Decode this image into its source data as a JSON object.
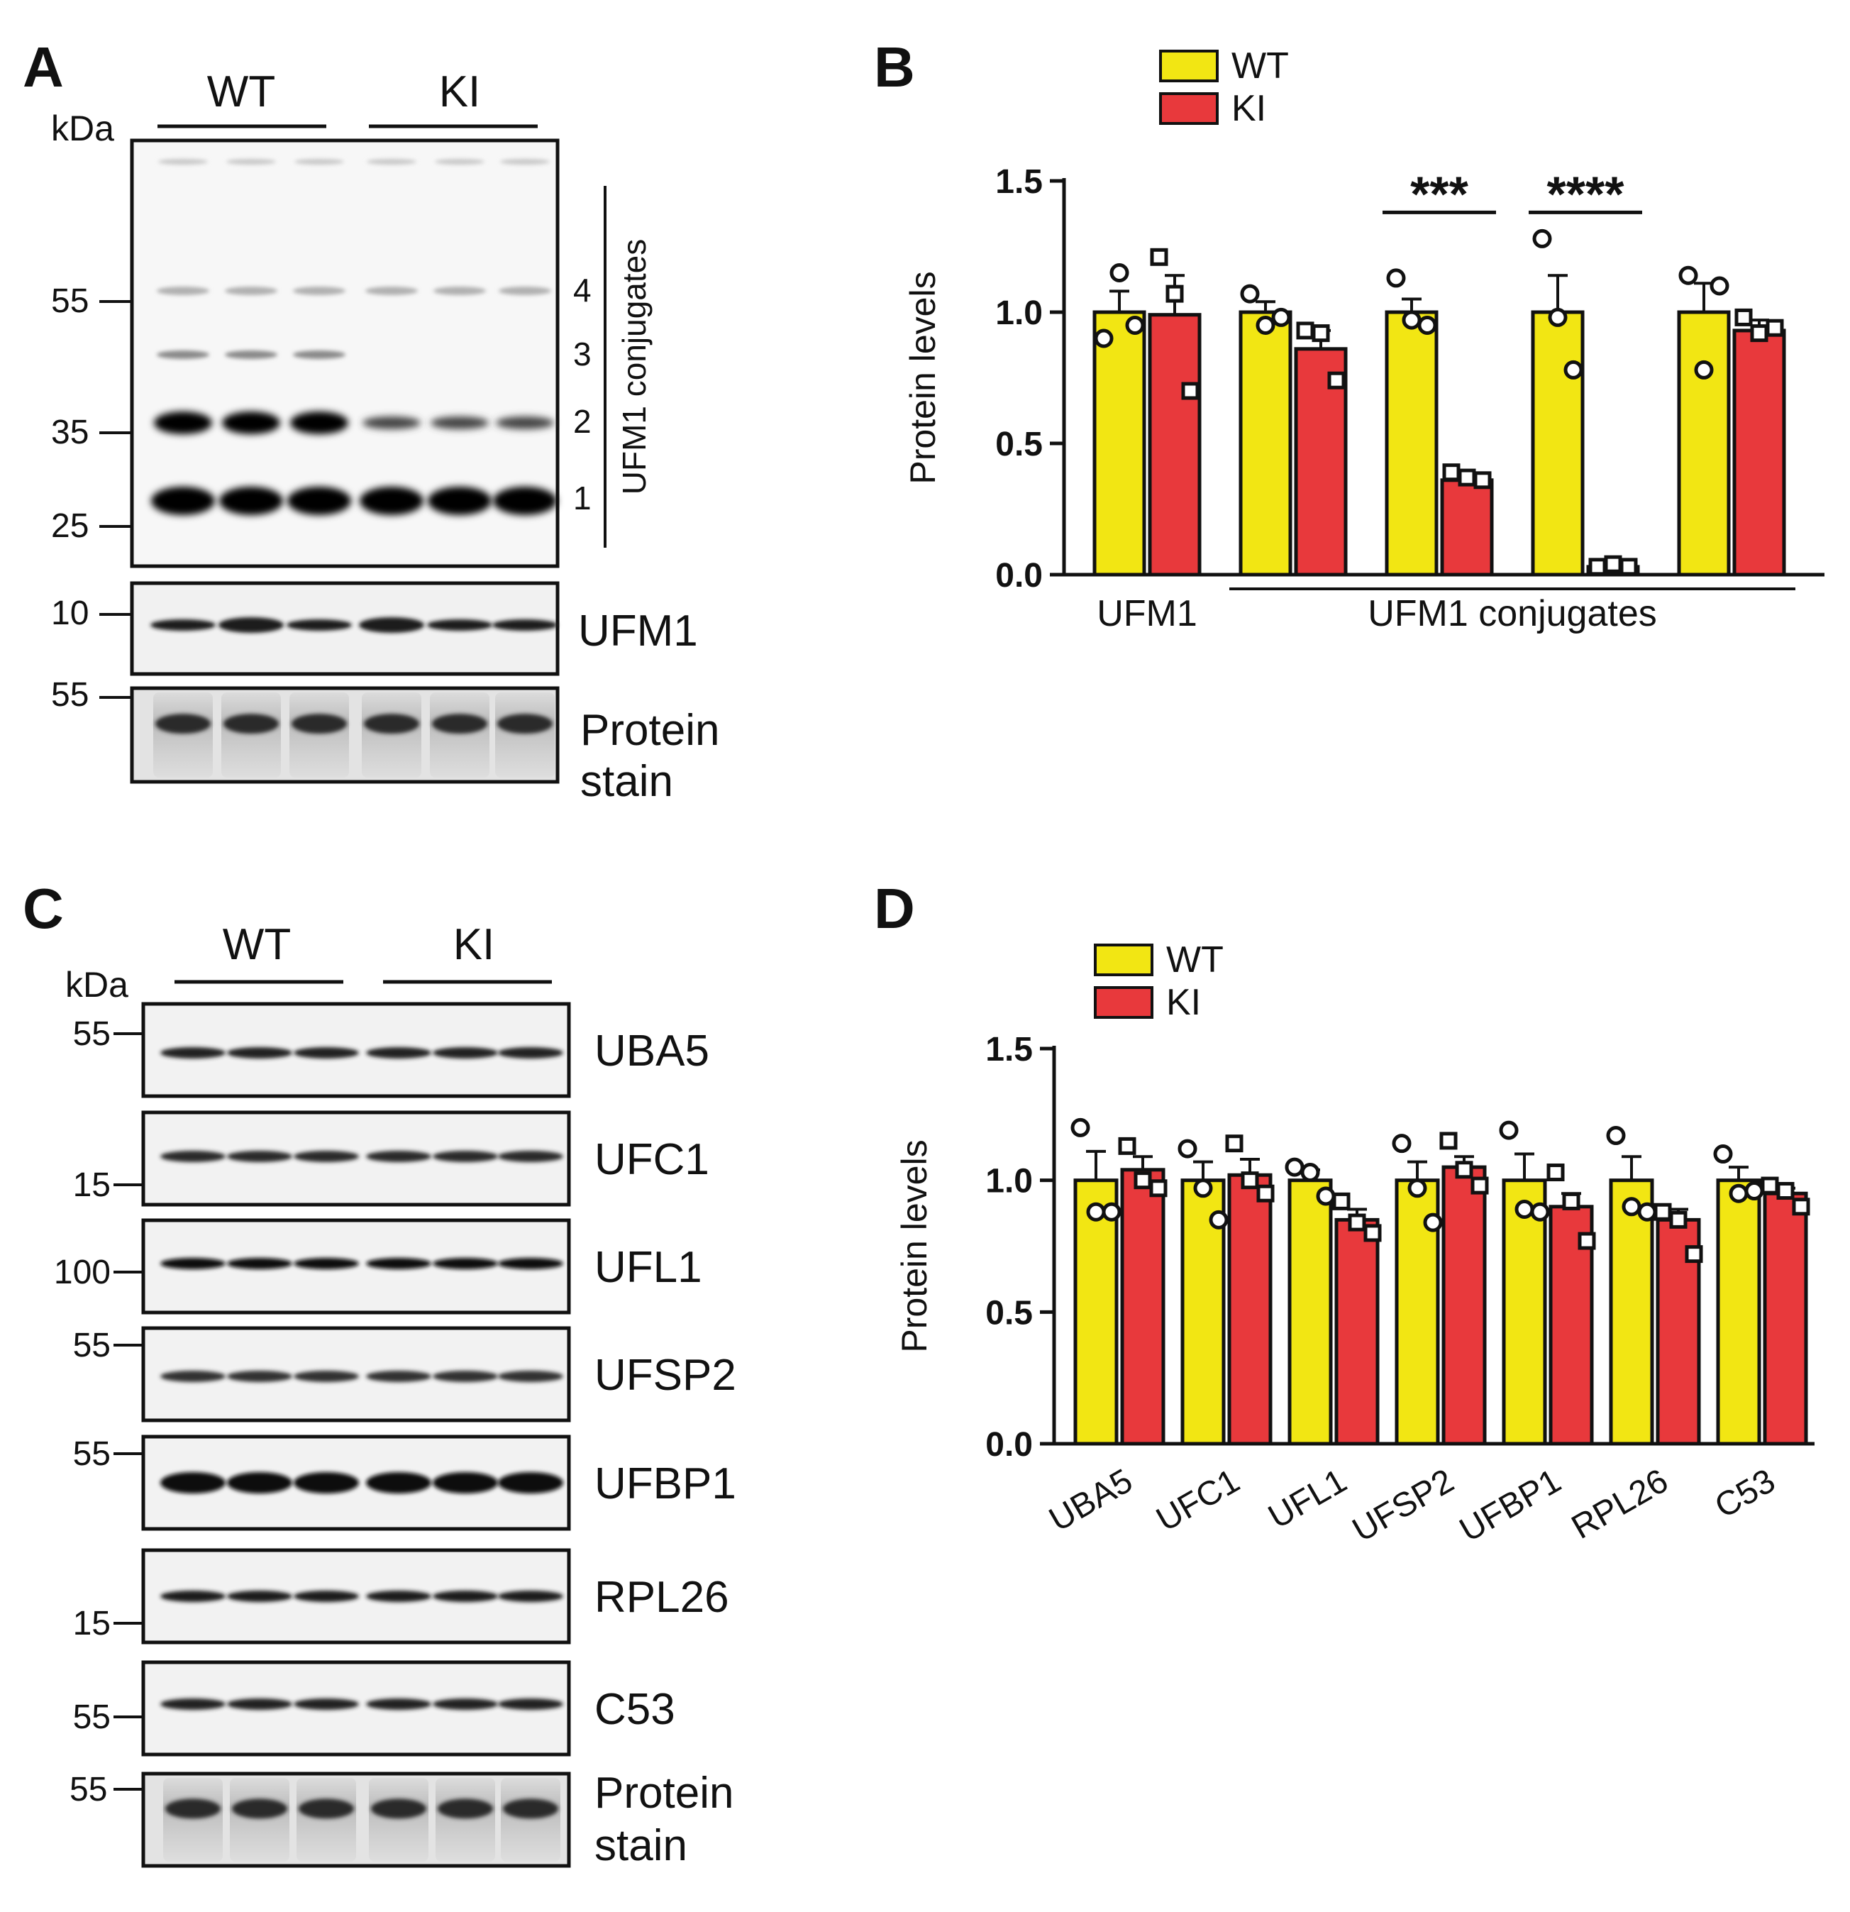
{
  "panels": {
    "A": {
      "letter": "A",
      "group_labels": [
        "WT",
        "KI"
      ],
      "kda_label": "kDa",
      "conj_markers": [
        "55",
        "35",
        "25"
      ],
      "conj_band_numbers": [
        "4",
        "3",
        "2",
        "1"
      ],
      "conj_label": "UFM1 conjugates",
      "ufm1_marker": "10",
      "ufm1_label": "UFM1",
      "stain_marker": "55",
      "stain_label_1": "Protein",
      "stain_label_2": "stain"
    },
    "C": {
      "letter": "C",
      "group_labels": [
        "WT",
        "KI"
      ],
      "kda_label": "kDa",
      "blots": [
        {
          "label": "UBA5",
          "marker": "55"
        },
        {
          "label": "UFC1",
          "marker": "15"
        },
        {
          "label": "UFL1",
          "marker": "100"
        },
        {
          "label": "UFSP2",
          "marker": "55"
        },
        {
          "label": "UFBP1",
          "marker": "55"
        },
        {
          "label": "RPL26",
          "marker": "15"
        },
        {
          "label": "C53",
          "marker": "55"
        }
      ],
      "stain_marker": "55",
      "stain_label_1": "Protein",
      "stain_label_2": "stain"
    },
    "B": {
      "letter": "B"
    },
    "D": {
      "letter": "D"
    }
  },
  "chart_data": [
    {
      "panel": "B",
      "type": "bar",
      "ylabel": "Protein levels",
      "ylim": [
        0,
        1.5
      ],
      "yticks": [
        "0.0",
        "0.5",
        "1.0",
        "1.5"
      ],
      "categories": [
        "UFM1",
        "UFM1 conjugates 1",
        "UFM1 conjugates 2",
        "UFM1 conjugates 3",
        "UFM1 conjugates 4"
      ],
      "group_labels": [
        "UFM1",
        "UFM1 conjugates"
      ],
      "legend": [
        "WT",
        "KI"
      ],
      "colors": {
        "WT": "#f2e613",
        "KI": "#e8393c"
      },
      "series": [
        {
          "name": "WT",
          "values": [
            1.0,
            1.0,
            1.0,
            1.0,
            1.0
          ],
          "errors": [
            0.08,
            0.04,
            0.05,
            0.14,
            0.11
          ],
          "points": [
            [
              0.9,
              1.15,
              0.95
            ],
            [
              1.07,
              0.95,
              0.98
            ],
            [
              1.13,
              0.97,
              0.95
            ],
            [
              1.28,
              0.98,
              0.78
            ],
            [
              1.14,
              0.78,
              1.1
            ]
          ]
        },
        {
          "name": "KI",
          "values": [
            0.99,
            0.86,
            0.36,
            0.03,
            0.93
          ],
          "errors": [
            0.15,
            0.07,
            0.02,
            0.01,
            0.04
          ],
          "points": [
            [
              1.21,
              1.07,
              0.7
            ],
            [
              0.93,
              0.92,
              0.74
            ],
            [
              0.39,
              0.37,
              0.36
            ],
            [
              0.03,
              0.04,
              0.03
            ],
            [
              0.98,
              0.92,
              0.94
            ]
          ]
        }
      ],
      "significance": [
        {
          "category_index": 2,
          "label": "***"
        },
        {
          "category_index": 3,
          "label": "****"
        }
      ]
    },
    {
      "panel": "D",
      "type": "bar",
      "ylabel": "Protein levels",
      "ylim": [
        0,
        1.5
      ],
      "yticks": [
        "0.0",
        "0.5",
        "1.0",
        "1.5"
      ],
      "categories": [
        "UBA5",
        "UFC1",
        "UFL1",
        "UFSP2",
        "UFBP1",
        "RPL26",
        "C53"
      ],
      "legend": [
        "WT",
        "KI"
      ],
      "colors": {
        "WT": "#f2e613",
        "KI": "#e8393c"
      },
      "series": [
        {
          "name": "WT",
          "values": [
            1.0,
            1.0,
            1.0,
            1.0,
            1.0,
            1.0,
            1.0
          ],
          "errors": [
            0.11,
            0.07,
            0.04,
            0.07,
            0.1,
            0.09,
            0.05
          ],
          "points": [
            [
              1.2,
              0.88,
              0.88
            ],
            [
              1.12,
              0.97,
              0.85
            ],
            [
              1.05,
              1.03,
              0.94
            ],
            [
              1.14,
              0.97,
              0.84
            ],
            [
              1.19,
              0.89,
              0.88
            ],
            [
              1.17,
              0.9,
              0.88
            ],
            [
              1.1,
              0.95,
              0.96
            ]
          ]
        },
        {
          "name": "KI",
          "values": [
            1.04,
            1.02,
            0.85,
            1.05,
            0.9,
            0.85,
            0.95
          ],
          "errors": [
            0.05,
            0.06,
            0.04,
            0.04,
            0.05,
            0.04,
            0.02
          ],
          "points": [
            [
              1.13,
              1.0,
              0.97
            ],
            [
              1.14,
              1.0,
              0.95
            ],
            [
              0.92,
              0.84,
              0.8
            ],
            [
              1.15,
              1.04,
              0.98
            ],
            [
              1.03,
              0.92,
              0.77
            ],
            [
              0.88,
              0.85,
              0.72
            ],
            [
              0.98,
              0.96,
              0.9
            ]
          ]
        }
      ]
    }
  ]
}
